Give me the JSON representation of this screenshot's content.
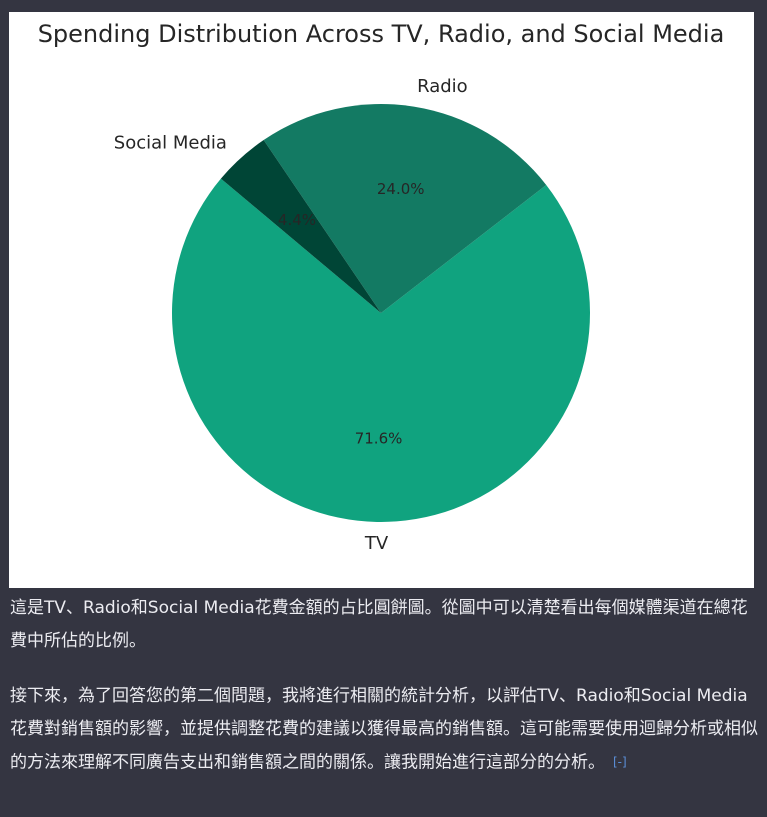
{
  "chart_data": {
    "type": "pie",
    "title": "Spending Distribution Across TV, Radio, and Social Media",
    "labels": [
      "TV",
      "Radio",
      "Social Media"
    ],
    "values": [
      71.6,
      24.0,
      4.4
    ],
    "percent_labels": [
      "71.6%",
      "24.0%",
      "4.4%"
    ],
    "colors": [
      "#10a37f",
      "#137a63",
      "#004536"
    ],
    "start_angle_deg": 140,
    "direction": "counterclockwise"
  },
  "message": {
    "paragraph_1": "這是TV、Radio和Social Media花費金額的占比圓餅圖。從圖中可以清楚看出每個媒體渠道在總花費中所佔的比例。",
    "paragraph_2": "接下來，為了回答您的第二個問題，我將進行相關的統計分析，以評估TV、Radio和Social Media花費對銷售額的影響，並提供調整花費的建議以獲得最高的銷售額。這可能需要使用迴歸分析或相似的方法來理解不同廣告支出和銷售額之間的關係。讓我開始進行這部分的分析。",
    "citation_label": "[-]"
  }
}
